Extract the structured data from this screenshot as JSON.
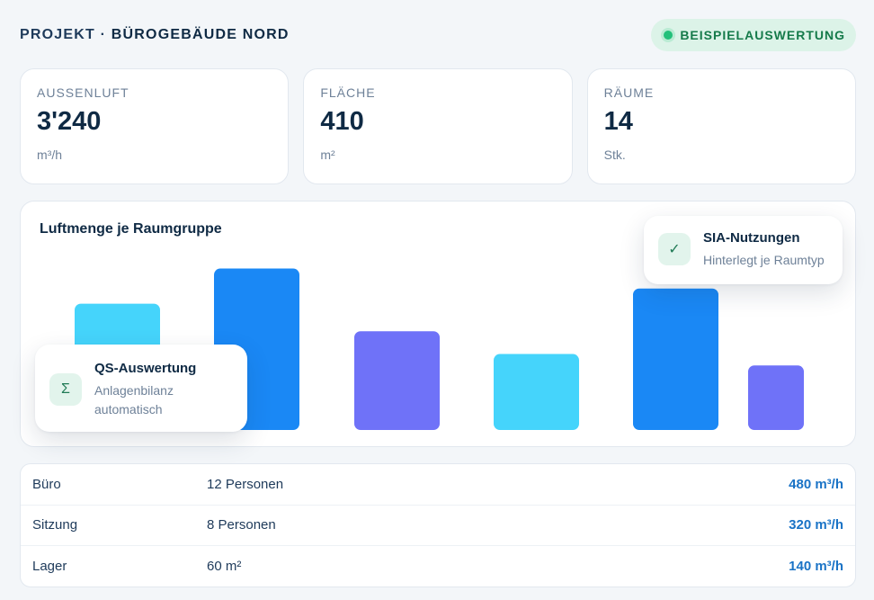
{
  "header": {
    "project_prefix": "PROJEKT · ",
    "project_name": "BÜROGEBÄUDE NORD",
    "badge": "BEISPIELAUSWERTUNG"
  },
  "stats": [
    {
      "label": "AUSSENLUFT",
      "value": "3'240",
      "unit": "m³/h"
    },
    {
      "label": "FLÄCHE",
      "value": "410",
      "unit": "m²"
    },
    {
      "label": "RÄUME",
      "value": "14",
      "unit": "Stk."
    }
  ],
  "chart": {
    "title": "Luftmenge je Raumgruppe",
    "colors": {
      "cyan": "#45d4fb",
      "blue": "#1a88f5",
      "purple": "#6f72f8"
    }
  },
  "chart_data": {
    "type": "bar",
    "title": "Luftmenge je Raumgruppe",
    "categories": [
      "",
      "",
      "",
      "",
      "",
      ""
    ],
    "values": [
      133,
      170,
      104,
      80,
      149,
      68
    ],
    "colors": [
      "#45d4fb",
      "#1a88f5",
      "#6f72f8",
      "#45d4fb",
      "#1a88f5",
      "#6f72f8"
    ],
    "ylim": [
      0,
      180
    ]
  },
  "cards": {
    "qs": {
      "icon": "sigma-icon",
      "symbol": "Σ",
      "title": "QS-Auswertung",
      "line1": "Anlagenbilanz",
      "line2": "automatisch"
    },
    "sia": {
      "icon": "check-icon",
      "symbol": "✓",
      "title": "SIA-Nutzungen",
      "line1": "Hinterlegt je Raumtyp"
    }
  },
  "table": {
    "rows": [
      {
        "name": "Büro",
        "detail": "12 Personen",
        "flow": "480 m³/h"
      },
      {
        "name": "Sitzung",
        "detail": "8 Personen",
        "flow": "320 m³/h"
      },
      {
        "name": "Lager",
        "detail": "60 m²",
        "flow": "140 m³/h"
      }
    ]
  }
}
